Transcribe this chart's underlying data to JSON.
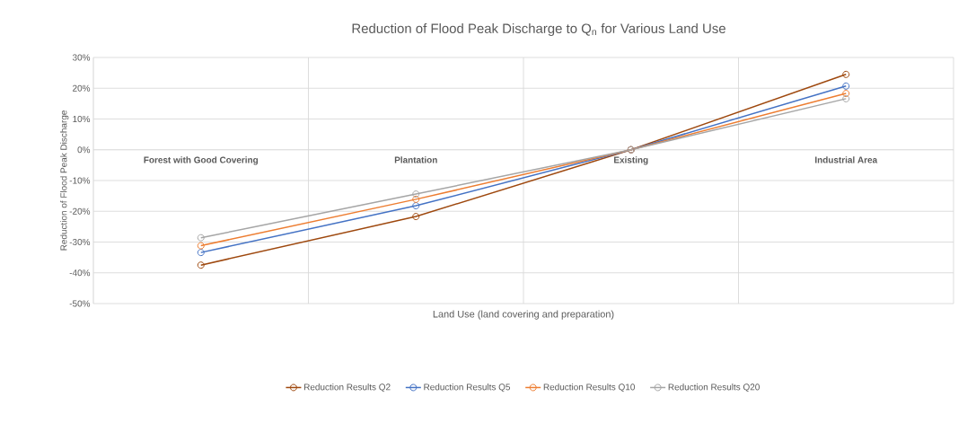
{
  "chart_data": {
    "type": "line",
    "title": "Reduction of Flood Peak Discharge to Q$_{n}$ for Various Land Use",
    "xlabel": "Land Use (land covering and preparation)",
    "ylabel": "Reduction of Flood Peak Discharge",
    "categories": [
      "Forest with Good Covering",
      "Plantation",
      "Existing",
      "Industrial Area"
    ],
    "series": [
      {
        "name": "Reduction Results Q2",
        "color": "#9e480e",
        "values": [
          -37.5,
          -21.7,
          0,
          24.5
        ]
      },
      {
        "name": "Reduction Results Q5",
        "color": "#4472c4",
        "values": [
          -33.4,
          -18.2,
          0,
          20.7
        ]
      },
      {
        "name": "Reduction Results Q10",
        "color": "#ed7d31",
        "values": [
          -31.2,
          -16.1,
          0,
          18.3
        ]
      },
      {
        "name": "Reduction Results Q20",
        "color": "#a5a5a5",
        "values": [
          -28.6,
          -14.4,
          0,
          16.6
        ]
      }
    ],
    "ylim": [
      -50,
      30
    ],
    "yticks": [
      {
        "value": -50,
        "label": "-50%"
      },
      {
        "value": -40,
        "label": "-40%"
      },
      {
        "value": -30,
        "label": "-30%"
      },
      {
        "value": -20,
        "label": "-20%"
      },
      {
        "value": -10,
        "label": "-10%"
      },
      {
        "value": 0,
        "label": "0%"
      },
      {
        "value": 10,
        "label": "10%"
      },
      {
        "value": 20,
        "label": "20%"
      },
      {
        "value": 30,
        "label": "30%"
      }
    ],
    "grid": true,
    "legend": "bottom",
    "marker": "circle",
    "line_style": "solid"
  }
}
